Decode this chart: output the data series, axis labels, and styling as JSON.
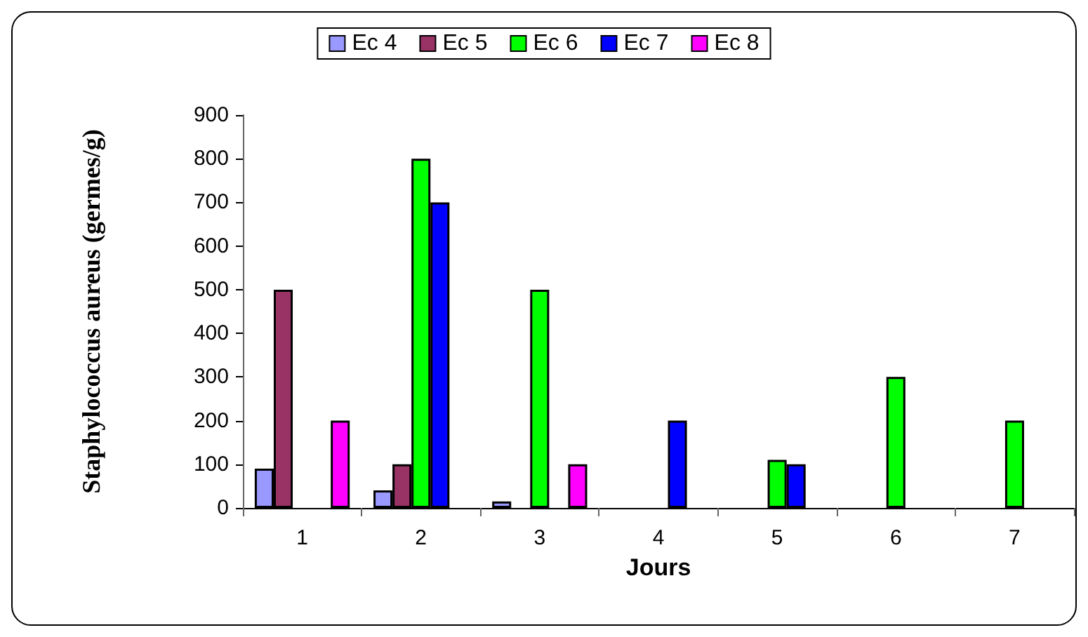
{
  "chart_data": {
    "type": "bar",
    "xlabel": "Jours",
    "ylabel": "Staphylococcus aureus (germes/g)",
    "categories": [
      "1",
      "2",
      "3",
      "4",
      "5",
      "6",
      "7"
    ],
    "series": [
      {
        "name": "Ec 4",
        "color": "#9999ff",
        "values": [
          90,
          40,
          15,
          null,
          null,
          null,
          null
        ]
      },
      {
        "name": "Ec 5",
        "color": "#993366",
        "values": [
          500,
          100,
          null,
          null,
          null,
          null,
          null
        ]
      },
      {
        "name": "Ec 6",
        "color": "#00ff00",
        "values": [
          null,
          800,
          500,
          null,
          110,
          300,
          200
        ]
      },
      {
        "name": "Ec 7",
        "color": "#0000ff",
        "values": [
          null,
          700,
          null,
          200,
          100,
          null,
          null
        ]
      },
      {
        "name": "Ec 8",
        "color": "#ff00ff",
        "values": [
          200,
          null,
          100,
          null,
          null,
          null,
          null
        ]
      }
    ],
    "ylim": [
      0,
      900
    ],
    "yticks": [
      0,
      100,
      200,
      300,
      400,
      500,
      600,
      700,
      800,
      900
    ],
    "grid": false,
    "legend": "top"
  }
}
